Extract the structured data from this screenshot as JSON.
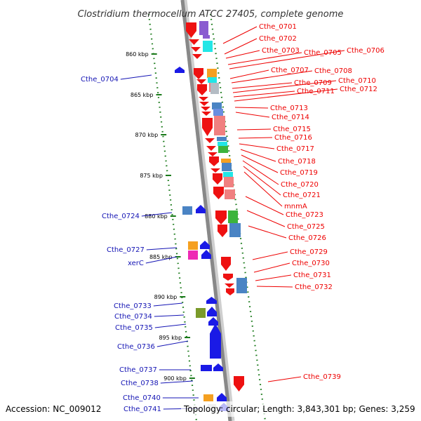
{
  "title": "Clostridium thermocellum ATCC 27405, complete genome",
  "footer": {
    "accession": "Accession: NC_009012",
    "topology": "Topology: circular; Length: 3,843,301 bp; Genes: 3,259"
  },
  "colors": {
    "forward_gene": "#ee1111",
    "reverse_gene": "#1a1ae6",
    "right_label": "#ee0000",
    "left_label": "#1414b4",
    "ruler_ticks": "#1a7a1a",
    "backbone": "#888888",
    "cog_orange": "#f5a020",
    "cog_cyan": "#22e6e6",
    "cog_purple": "#8a5cd0",
    "cog_pink": "#f08080",
    "cog_green": "#3cb43c",
    "cog_steelblue": "#4a84c4",
    "cog_magenta": "#ee2ab4",
    "cog_olive": "#7a9a2a",
    "cog_silver": "#b4bcc4"
  },
  "ruler": [
    "860 kbp",
    "865 kbp",
    "870 kbp",
    "875 kbp",
    "880 kbp",
    "885 kbp",
    "890 kbp",
    "895 kbp",
    "900 kbp"
  ],
  "forward_genes": [
    "Cthe_0701",
    "Cthe_0702",
    "Cthe_0703",
    "Cthe_0705",
    "Cthe_0706",
    "Cthe_0707",
    "Cthe_0708",
    "Cthe_0709",
    "Cthe_0710",
    "Cthe_0711",
    "Cthe_0712",
    "Cthe_0713",
    "Cthe_0714",
    "Cthe_0715",
    "Cthe_0716",
    "Cthe_0717",
    "Cthe_0718",
    "Cthe_0719",
    "Cthe_0720",
    "Cthe_0721",
    "mnmA",
    "Cthe_0723",
    "Cthe_0725",
    "Cthe_0726",
    "Cthe_0729",
    "Cthe_0730",
    "Cthe_0731",
    "Cthe_0732",
    "Cthe_0739"
  ],
  "reverse_genes": [
    "Cthe_0704",
    "Cthe_0724",
    "Cthe_0727",
    "xerC",
    "Cthe_0733",
    "Cthe_0734",
    "Cthe_0735",
    "Cthe_0736",
    "Cthe_0737",
    "Cthe_0738",
    "Cthe_0740",
    "Cthe_0741"
  ]
}
